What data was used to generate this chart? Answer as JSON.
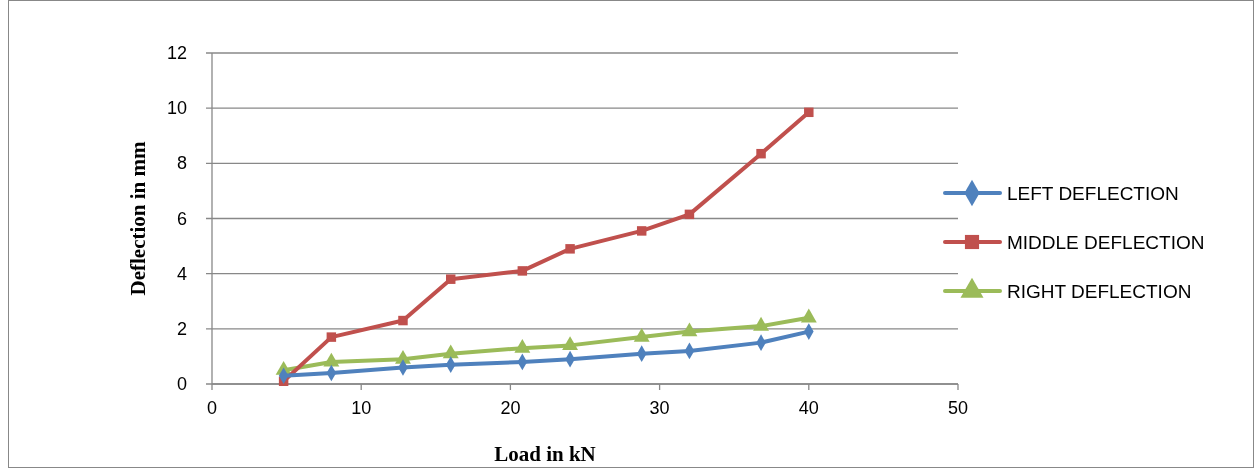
{
  "chart_data": {
    "type": "line",
    "xlabel": "Load in kN",
    "ylabel": "Deflection in mm",
    "x": [
      4.8,
      8,
      12.8,
      16,
      20.8,
      24,
      28.8,
      32,
      36.8,
      40
    ],
    "series": [
      {
        "name": "LEFT DEFLECTION",
        "color": "#4f81bd",
        "marker": "diamond",
        "values": [
          0.3,
          0.4,
          0.6,
          0.7,
          0.8,
          0.9,
          1.1,
          1.2,
          1.5,
          1.9
        ]
      },
      {
        "name": "MIDDLE DEFLECTION",
        "color": "#c0504d",
        "marker": "square",
        "values": [
          0.1,
          1.7,
          2.3,
          3.8,
          4.1,
          4.9,
          5.55,
          6.15,
          8.35,
          9.85
        ]
      },
      {
        "name": "RIGHT DEFLECTION",
        "color": "#9bbb59",
        "marker": "triangle",
        "values": [
          0.5,
          0.8,
          0.9,
          1.1,
          1.3,
          1.4,
          1.7,
          1.9,
          2.1,
          2.4
        ]
      }
    ],
    "xlim": [
      0,
      50
    ],
    "xticks": [
      0,
      10,
      20,
      30,
      40,
      50
    ],
    "ylim": [
      0,
      12
    ],
    "yticks": [
      0,
      2,
      4,
      6,
      8,
      10,
      12
    ],
    "grid": "y",
    "legend": "right"
  }
}
